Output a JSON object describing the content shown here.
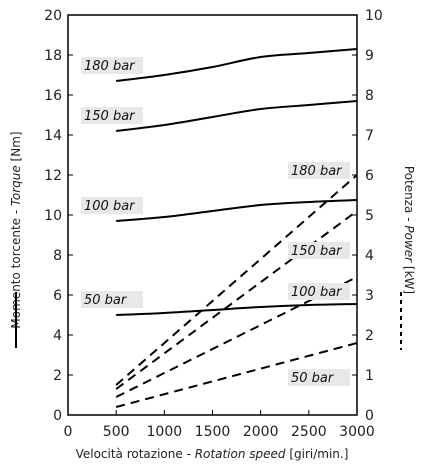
{
  "chart_data": {
    "type": "line",
    "xlabel_main": "Velocità rotazione - ",
    "xlabel_italic": "Rotation speed",
    "xlabel_unit": " [giri/min.]",
    "ylabel_left_main": "Momento torcente - ",
    "ylabel_left_italic": "Torque",
    "ylabel_left_unit": " [Nm]",
    "ylabel_right_main": "Potenza - ",
    "ylabel_right_italic": "Power",
    "ylabel_right_unit": " [kW]",
    "xlim": [
      0,
      3000
    ],
    "ylim_left": [
      0,
      20
    ],
    "ylim_right": [
      0,
      10
    ],
    "x_ticks": [
      0,
      500,
      1000,
      1500,
      2000,
      2500,
      3000
    ],
    "y_left_ticks": [
      0,
      2,
      4,
      6,
      8,
      10,
      12,
      14,
      16,
      18,
      20
    ],
    "y_right_ticks": [
      0,
      1,
      2,
      3,
      4,
      5,
      6,
      7,
      8,
      9,
      10
    ],
    "grid": false,
    "torque_series": [
      {
        "name": "180 bar",
        "x": [
          500,
          1000,
          1500,
          2000,
          2500,
          3000
        ],
        "y": [
          16.7,
          17.0,
          17.4,
          17.9,
          18.1,
          18.3
        ]
      },
      {
        "name": "150 bar",
        "x": [
          500,
          1000,
          1500,
          2000,
          2500,
          3000
        ],
        "y": [
          14.2,
          14.5,
          14.9,
          15.3,
          15.5,
          15.7
        ]
      },
      {
        "name": "100 bar",
        "x": [
          500,
          1000,
          1500,
          2000,
          2500,
          3000
        ],
        "y": [
          9.7,
          9.9,
          10.2,
          10.5,
          10.65,
          10.75
        ]
      },
      {
        "name": "50 bar",
        "x": [
          500,
          1000,
          1500,
          2000,
          2500,
          3000
        ],
        "y": [
          5.0,
          5.1,
          5.25,
          5.4,
          5.5,
          5.55
        ]
      }
    ],
    "power_series": [
      {
        "name": "180 bar",
        "x": [
          500,
          3000
        ],
        "y": [
          0.75,
          6.0
        ]
      },
      {
        "name": "150 bar",
        "x": [
          500,
          3000
        ],
        "y": [
          0.65,
          5.1
        ]
      },
      {
        "name": "100 bar",
        "x": [
          500,
          3000
        ],
        "y": [
          0.45,
          3.45
        ]
      },
      {
        "name": "50 bar",
        "x": [
          500,
          3000
        ],
        "y": [
          0.2,
          1.8
        ]
      }
    ]
  }
}
